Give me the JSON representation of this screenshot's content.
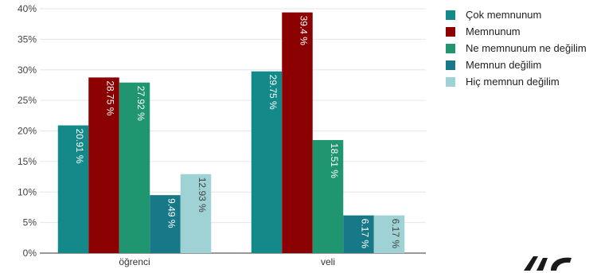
{
  "chart_data": {
    "type": "bar",
    "categories": [
      "öğrenci",
      "veli"
    ],
    "series": [
      {
        "name": "Çok memnunum",
        "values": [
          20.91,
          29.75
        ],
        "labels": [
          "20.91 %",
          "29.75 %"
        ],
        "color": "#138a89"
      },
      {
        "name": "Memnunum",
        "values": [
          28.75,
          39.4
        ],
        "labels": [
          "28.75 %",
          "39.4 %"
        ],
        "color": "#8b0000"
      },
      {
        "name": "Ne memnunum ne değilim",
        "values": [
          27.92,
          18.51
        ],
        "labels": [
          "27.92 %",
          "18.51 %"
        ],
        "color": "#1f9670"
      },
      {
        "name": "Memnun değilim",
        "values": [
          9.49,
          6.17
        ],
        "labels": [
          "9.49 %",
          "6.17 %"
        ],
        "color": "#177887"
      },
      {
        "name": "Hiç memnun değilim",
        "values": [
          12.93,
          6.17
        ],
        "labels": [
          "12.93 %",
          "6.17 %"
        ],
        "color": "#9fd2d4"
      }
    ],
    "yticks": [
      "0%",
      "5%",
      "10%",
      "15%",
      "20%",
      "25%",
      "30%",
      "35%",
      "40%"
    ],
    "ylim": [
      0,
      40
    ],
    "grid": true,
    "legend_position": "right"
  }
}
